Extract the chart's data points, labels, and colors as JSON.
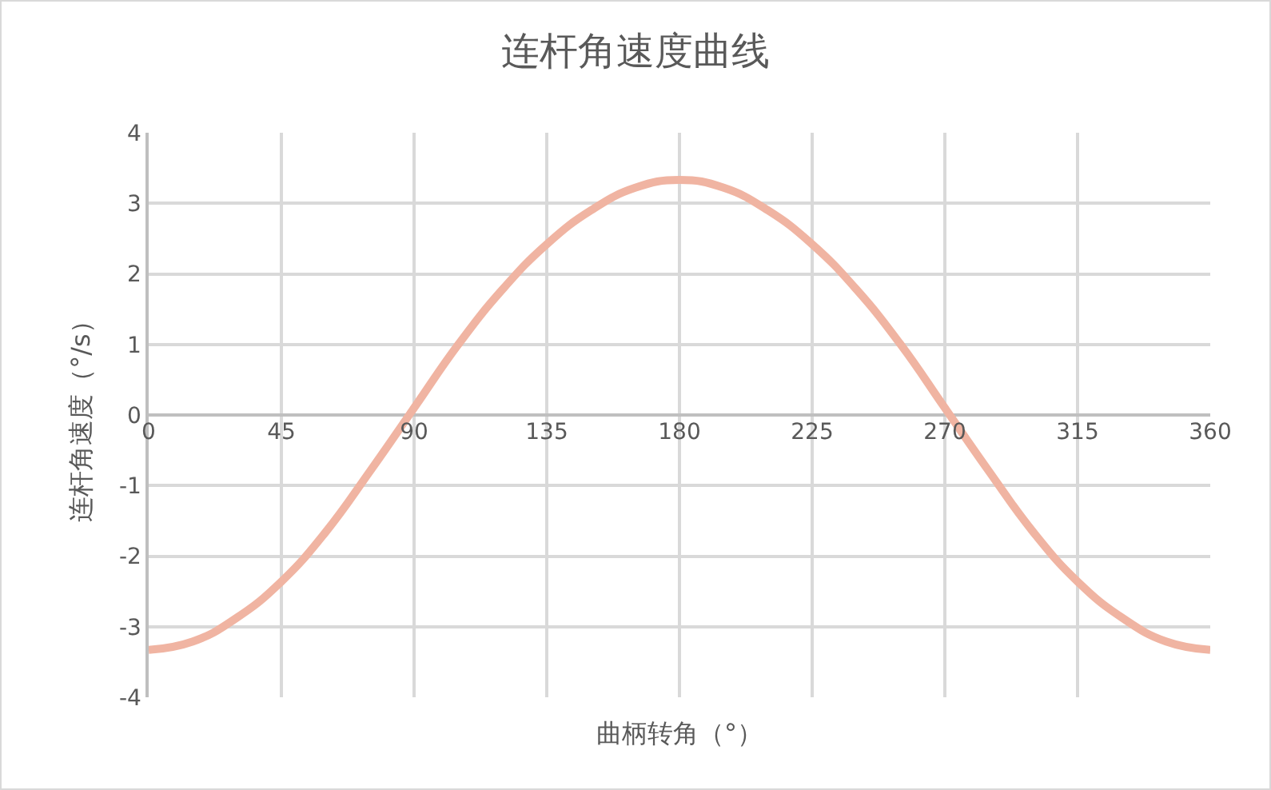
{
  "chart_data": {
    "type": "line",
    "title": "连杆角速度曲线",
    "xlabel": "曲柄转角（°）",
    "ylabel": "连杆角速度（°/s）",
    "x": [
      0,
      15,
      30,
      45,
      60,
      75,
      90,
      105,
      120,
      135,
      150,
      165,
      180,
      195,
      210,
      225,
      240,
      255,
      270,
      285,
      300,
      315,
      330,
      345,
      360
    ],
    "series": [
      {
        "color": "#f0b4a2",
        "values": [
          -3.33,
          -3.21,
          -2.87,
          -2.36,
          -1.66,
          -0.8,
          0.1,
          1.0,
          1.78,
          2.42,
          2.9,
          3.22,
          3.33,
          3.22,
          2.9,
          2.42,
          1.78,
          1.0,
          0.1,
          -0.8,
          -1.66,
          -2.36,
          -2.87,
          -3.21,
          -3.33
        ]
      }
    ],
    "xlim": [
      0,
      360
    ],
    "xticks": [
      0,
      45,
      90,
      135,
      180,
      225,
      270,
      315,
      360
    ],
    "ylim": [
      -4,
      4
    ],
    "yticks": [
      -4,
      -3,
      -2,
      -1,
      0,
      1,
      2,
      3,
      4
    ],
    "grid": true,
    "marker": "none",
    "line_style": "solid"
  }
}
